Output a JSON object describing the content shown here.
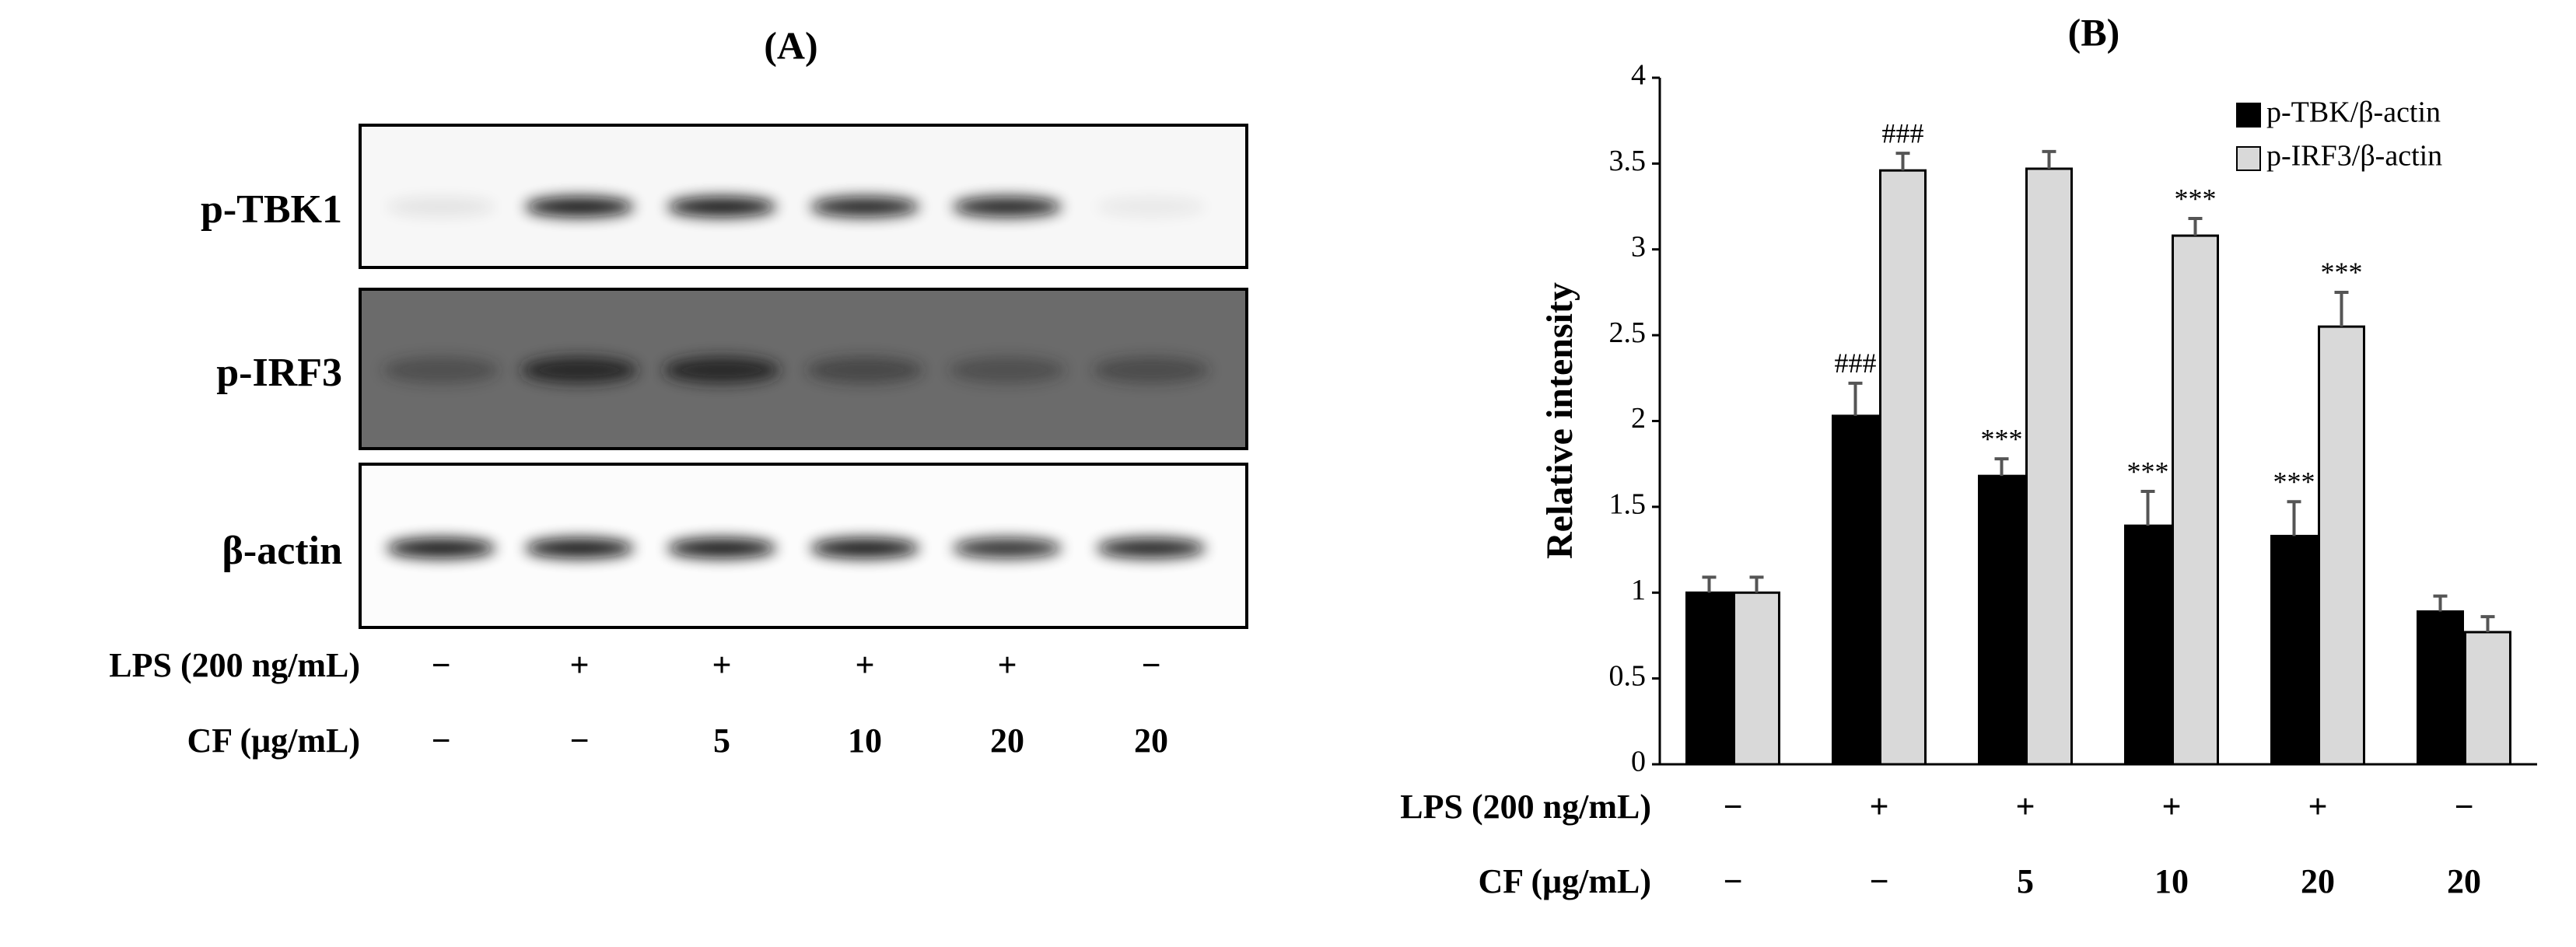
{
  "panel_a": {
    "title": "(A)",
    "rows": [
      "p-TBK1",
      "p-IRF3",
      "β-actin"
    ],
    "conditions": [
      {
        "label": "LPS (200 ng/mL)",
        "values": [
          "−",
          "+",
          "+",
          "+",
          "+",
          "−"
        ]
      },
      {
        "label": "CF (μg/mL)",
        "values": [
          "−",
          "−",
          "5",
          "10",
          "20",
          "20"
        ]
      }
    ]
  },
  "chart_data": {
    "type": "bar",
    "title": "(B)",
    "y_label": "Relative intensity",
    "categories": [
      null,
      null,
      null,
      null,
      null,
      null
    ],
    "series": [
      {
        "name": "p-TBK/β-actin",
        "color": "#000000",
        "values": [
          1.0,
          2.03,
          1.68,
          1.39,
          1.33,
          0.89
        ],
        "errors": [
          0.09,
          0.19,
          0.1,
          0.2,
          0.2,
          0.09
        ],
        "significance": [
          null,
          "###",
          "***",
          "***",
          "***",
          null
        ]
      },
      {
        "name": "p-IRF3/β-actin",
        "color": "#d9d9d9",
        "values": [
          1.0,
          3.46,
          3.47,
          3.08,
          2.55,
          0.77
        ],
        "errors": [
          0.09,
          0.1,
          0.1,
          0.1,
          0.2,
          0.09
        ],
        "significance": [
          null,
          "###",
          null,
          "***",
          "***",
          null
        ]
      }
    ],
    "ylim": [
      0,
      4
    ],
    "yticks": [
      0,
      0.5,
      1,
      1.5,
      2,
      2.5,
      3,
      3.5,
      4
    ],
    "grid": false,
    "legend": "upper right",
    "conditions": [
      {
        "label": "LPS (200 ng/mL)",
        "values": [
          "−",
          "+",
          "+",
          "+",
          "+",
          "−"
        ]
      },
      {
        "label": "CF (μg/mL)",
        "values": [
          "−",
          "−",
          "5",
          "10",
          "20",
          "20"
        ]
      }
    ]
  }
}
